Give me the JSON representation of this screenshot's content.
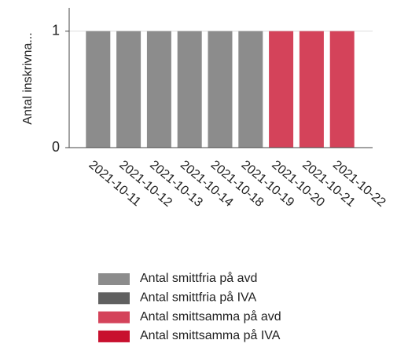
{
  "chart_data": {
    "type": "bar",
    "stacked": true,
    "ylabel": "Antal inskrivna...",
    "categories": [
      "2021-10-11",
      "2021-10-12",
      "2021-10-13",
      "2021-10-14",
      "2021-10-18",
      "2021-10-19",
      "2021-10-20",
      "2021-10-21",
      "2021-10-22"
    ],
    "series": [
      {
        "name": "Antal smittfria på avd",
        "color": "#8c8c8c",
        "values": [
          1,
          1,
          1,
          1,
          1,
          1,
          0,
          0,
          0
        ]
      },
      {
        "name": "Antal smittfria på IVA",
        "color": "#606060",
        "values": [
          0,
          0,
          0,
          0,
          0,
          0,
          0,
          0,
          0
        ]
      },
      {
        "name": "Antal smittsamma på avd",
        "color": "#d4435a",
        "values": [
          0,
          0,
          0,
          0,
          0,
          0,
          1,
          1,
          1
        ]
      },
      {
        "name": "Antal smittsamma på IVA",
        "color": "#c8102e",
        "values": [
          0,
          0,
          0,
          0,
          0,
          0,
          0,
          0,
          0
        ]
      }
    ],
    "ylim": [
      0,
      1.2
    ],
    "yticks": [
      0,
      1
    ],
    "grid": true
  }
}
